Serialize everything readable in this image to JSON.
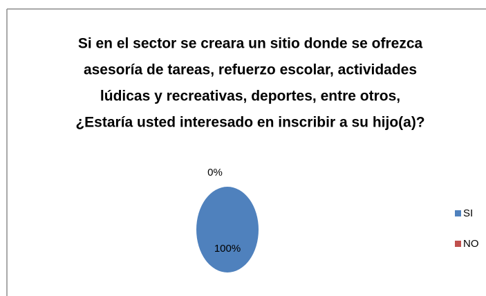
{
  "chart_data": {
    "type": "pie",
    "title": [
      "Si en el sector se creara un sitio donde se ofrezca",
      "asesoría de tareas, refuerzo escolar, actividades",
      "lúdicas y recreativas, deportes, entre otros,",
      "¿Estaría usted interesado en inscribir a su hijo(a)?"
    ],
    "categories": [
      "SI",
      "NO"
    ],
    "values": [
      100,
      0
    ],
    "value_labels": [
      "100%",
      "0%"
    ],
    "colors": [
      "#4f81bd",
      "#c0504d"
    ],
    "legend": "right"
  }
}
